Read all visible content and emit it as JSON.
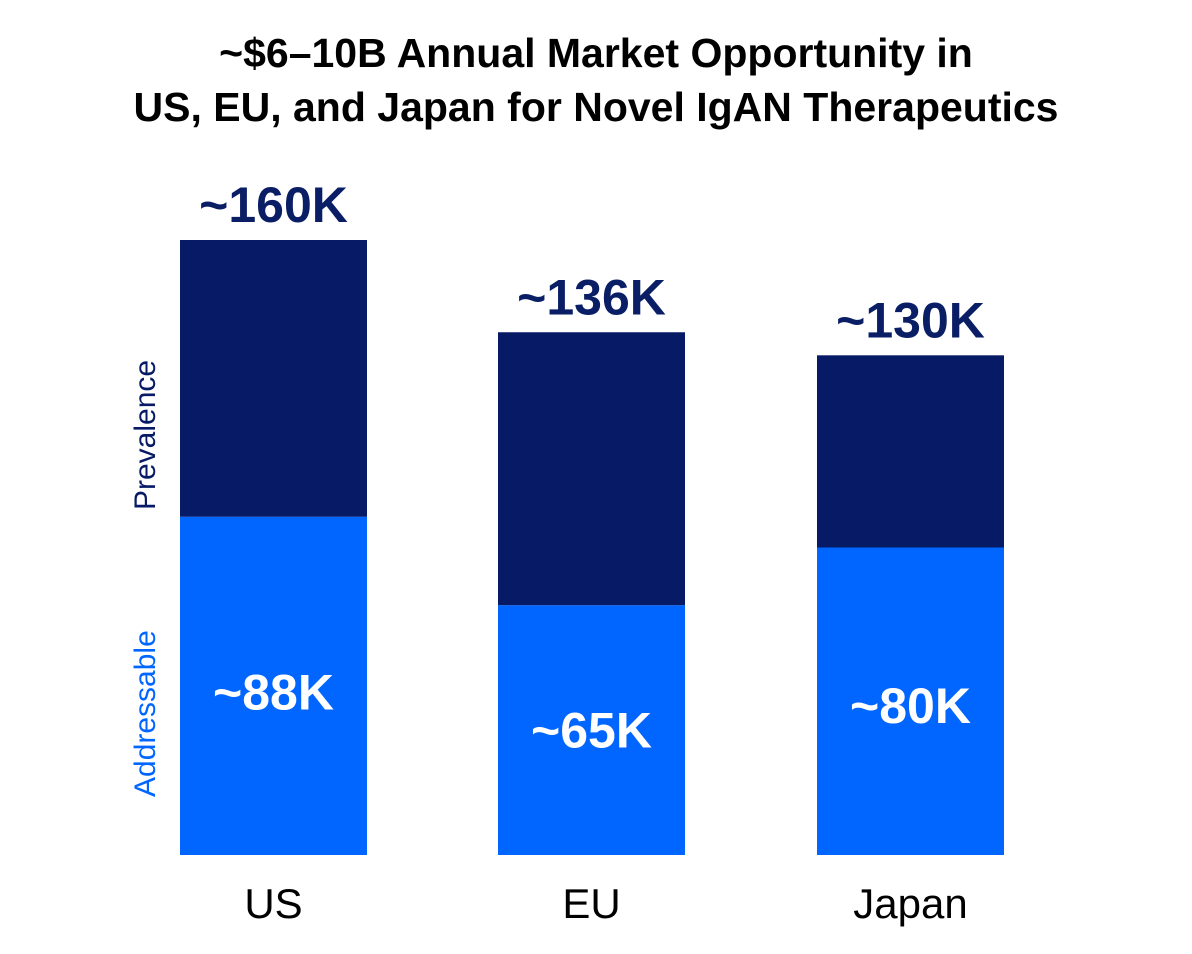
{
  "title_lines": [
    "~$6–10B Annual Market Opportunity in",
    "US, EU, and Japan for Novel IgAN Therapeutics"
  ],
  "colors": {
    "prevalence": "#061A66",
    "addressable": "#0066FF",
    "total_label": "#0A1E66",
    "inner_label": "#FFFFFF",
    "category_label": "#000000"
  },
  "chart_data": {
    "type": "bar",
    "stacked": true,
    "categories": [
      "US",
      "EU",
      "Japan"
    ],
    "series": [
      {
        "name": "Addressable",
        "values": [
          88,
          65,
          80
        ],
        "labels": [
          "~88K",
          "~65K",
          "~80K"
        ]
      },
      {
        "name": "Prevalence",
        "values": [
          72,
          71,
          50
        ]
      }
    ],
    "totals": [
      160,
      136,
      130
    ],
    "total_labels": [
      "~160K",
      "~136K",
      "~130K"
    ],
    "legend_position": "left, rotated vertical",
    "grid": false,
    "axes_visible": false
  }
}
